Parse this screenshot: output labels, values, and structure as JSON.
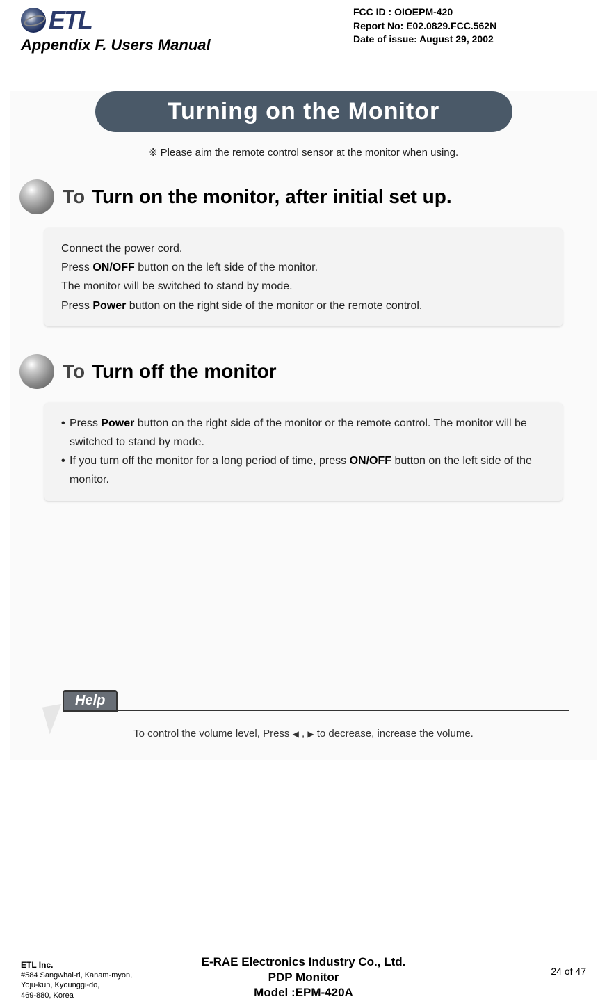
{
  "header": {
    "logo_text": "ETL",
    "appendix_title": "Appendix F.   Users Manual",
    "fcc_id": "FCC ID : OIOEPM-420",
    "report_no": "Report No: E02.0829.FCC.562N",
    "date_of_issue": "Date of issue: August 29, 2002"
  },
  "main_title": "Turning on the Monitor",
  "note_prefix": "※",
  "note_text": "Please aim the remote control sensor at the monitor when using.",
  "section1": {
    "to": "To",
    "heading": "Turn on the monitor, after initial set up.",
    "line1": "Connect the power cord.",
    "line2_a": "Press ",
    "line2_b": "ON/OFF",
    "line2_c": " button on the left side of the monitor.",
    "line3": "The monitor will be switched to stand by mode.",
    "line4_a": "Press ",
    "line4_b": "Power",
    "line4_c": " button on the right side of the monitor or the remote control."
  },
  "section2": {
    "to": "To",
    "heading": "Turn off the monitor",
    "b1_a": "Press ",
    "b1_b": "Power",
    "b1_c": " button on the right side of the monitor or the remote control. The monitor will be switched to stand by mode.",
    "b2_a": "If you turn off the monitor for a long period of time, press ",
    "b2_b": "ON/OFF",
    "b2_c": " button on the left side of the monitor."
  },
  "help": {
    "label": "Help",
    "text_a": "To control the volume level, Press ",
    "text_left": "◀",
    "text_mid": " , ",
    "text_right": "▶",
    "text_b": " to decrease, increase the volume."
  },
  "footer": {
    "company": "ETL Inc.",
    "addr1": "#584 Sangwhal-ri, Kanam-myon,",
    "addr2": "Yoju-kun, Kyounggi-do,",
    "addr3": "469-880, Korea",
    "center1": "E-RAE Electronics Industry Co., Ltd.",
    "center2": "PDP Monitor",
    "center3": "Model :EPM-420A",
    "page": "24 of 47"
  },
  "colors": {
    "pill_bg": "#4a5968",
    "pill_text": "#ffffff",
    "box_bg": "#f3f3f3",
    "page_bg": "#fafafa",
    "logo_color": "#2b3a6b",
    "help_tab_bg": "#686e76"
  }
}
